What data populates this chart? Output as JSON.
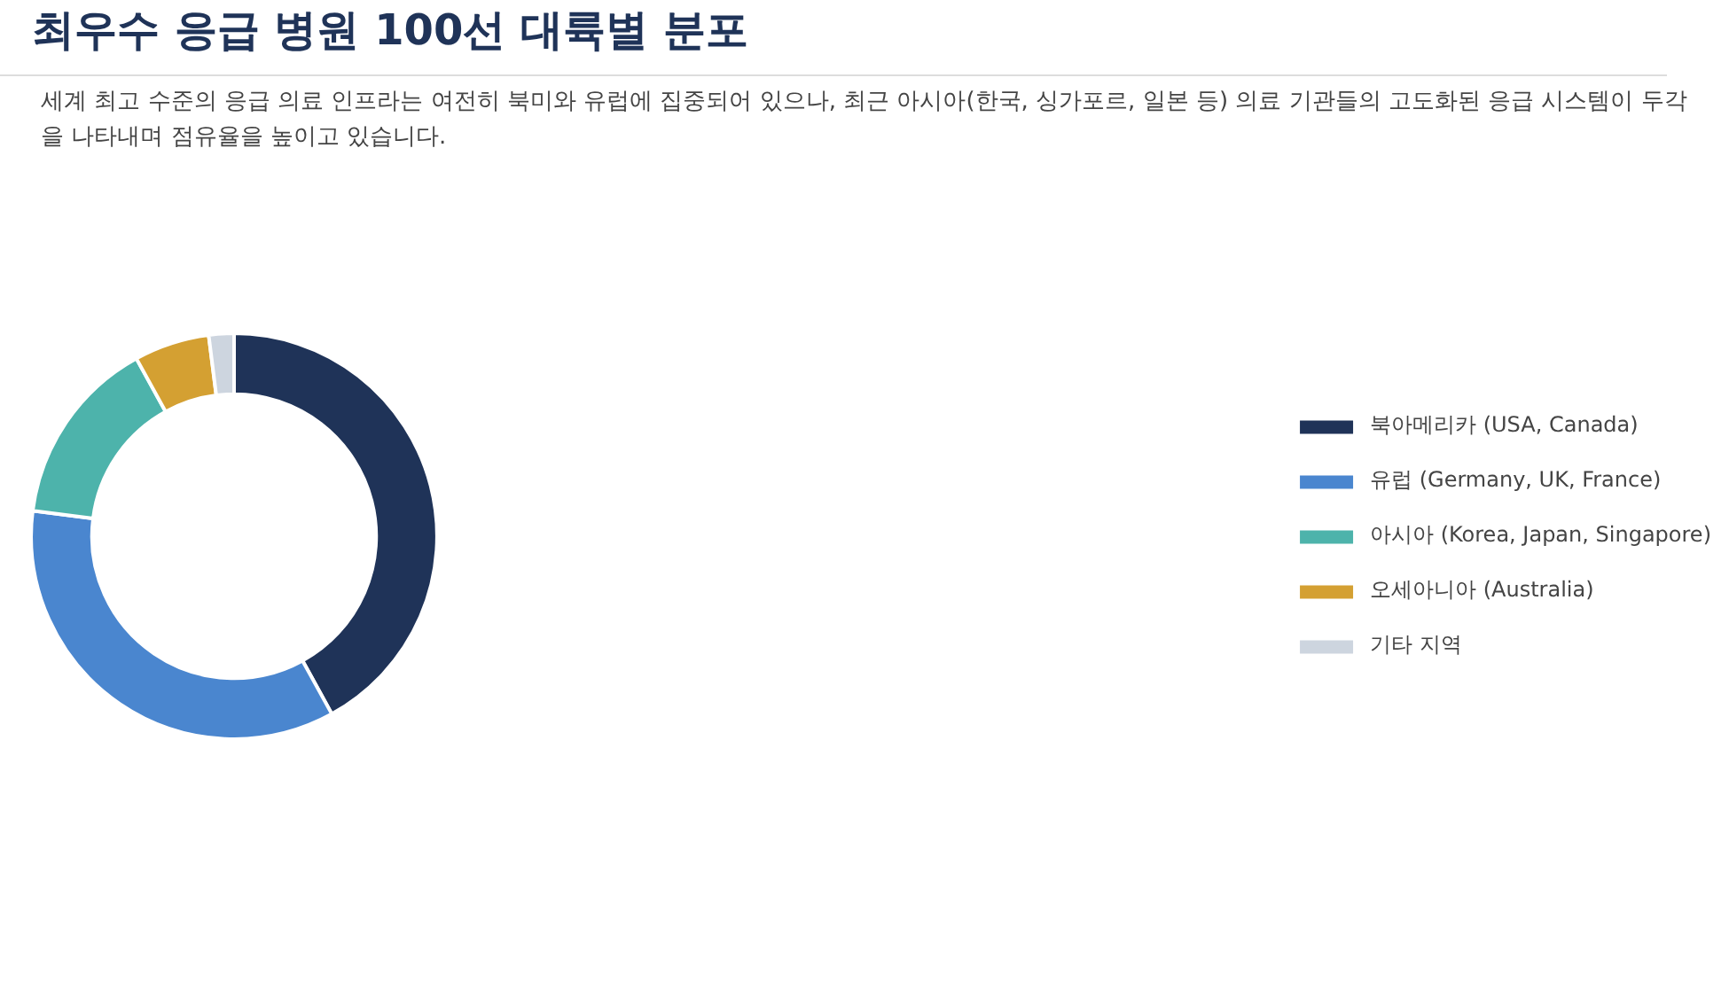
{
  "chart_data": {
    "type": "donut",
    "title": "최우수 응급 병원 100선 대륙별 분포",
    "subtitle": "세계 최고 수준의 응급 의료 인프라는 여전히 북미와 유럽에 집중되어 있으나, 최근 아시아(한국, 싱가포르, 일본 등) 의료 기관들의 고도화된 응급 시스템이 두각을 나타내며 점유율을 높이고 있습니다.",
    "categories": [
      "북아메리카 (USA, Canada)",
      "유럽 (Germany, UK, France)",
      "아시아 (Korea, Japan, Singapore)",
      "오세아니아 (Australia)",
      "기타 지역"
    ],
    "values": [
      42,
      35,
      15,
      6,
      2
    ],
    "colors": [
      "#1f3358",
      "#4a86cf",
      "#4db3ab",
      "#d4a032",
      "#cdd5df"
    ],
    "legend": "right"
  }
}
